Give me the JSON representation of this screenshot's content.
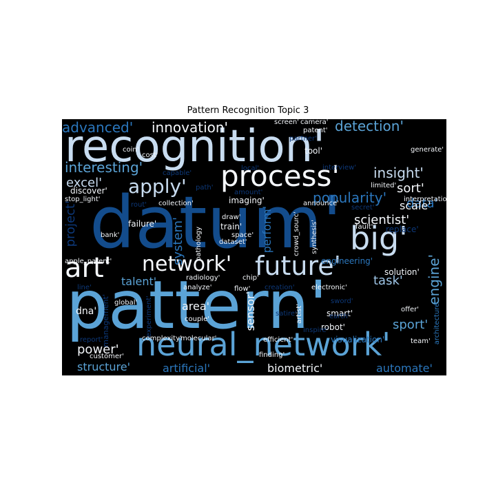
{
  "title": "Pattern Recognition Topic 3",
  "colors": {
    "white": "#f4f7fb",
    "pale": "#c8dcf0",
    "light": "#9ec5e6",
    "mid": "#5ba3d6",
    "blue": "#2b77bd",
    "deep": "#134c8c",
    "dark": "#0d3878",
    "background": "#000000"
  },
  "words": [
    {
      "text": "datum'",
      "color": "deep"
    },
    {
      "text": "pattern'",
      "color": "mid"
    },
    {
      "text": "recognition'",
      "color": "pale"
    },
    {
      "text": "neural_network'",
      "color": "mid"
    },
    {
      "text": "process'",
      "color": "white"
    },
    {
      "text": "big'",
      "color": "pale"
    },
    {
      "text": "future'",
      "color": "pale"
    },
    {
      "text": "network'",
      "color": "white"
    },
    {
      "text": "art'",
      "color": "white"
    },
    {
      "text": "apply'",
      "color": "pale"
    },
    {
      "text": "innovation'",
      "color": "white"
    },
    {
      "text": "advanced'",
      "color": "blue"
    },
    {
      "text": "detection'",
      "color": "mid"
    },
    {
      "text": "interesting'",
      "color": "mid"
    },
    {
      "text": "insight'",
      "color": "pale"
    },
    {
      "text": "excel'",
      "color": "pale"
    },
    {
      "text": "sort'",
      "color": "white"
    },
    {
      "text": "popularity'",
      "color": "blue"
    },
    {
      "text": "data'",
      "color": "blue"
    },
    {
      "text": "scientist'",
      "color": "white"
    },
    {
      "text": "scale'",
      "color": "white"
    },
    {
      "text": "project'",
      "color": "dark"
    },
    {
      "text": "system'",
      "color": "blue"
    },
    {
      "text": "perform'",
      "color": "blue"
    },
    {
      "text": "task'",
      "color": "light"
    },
    {
      "text": "engine'",
      "color": "mid"
    },
    {
      "text": "talent'",
      "color": "mid"
    },
    {
      "text": "area'",
      "color": "white"
    },
    {
      "text": "sensor'",
      "color": "white"
    },
    {
      "text": "sport'",
      "color": "mid"
    },
    {
      "text": "power'",
      "color": "white"
    },
    {
      "text": "structure'",
      "color": "mid"
    },
    {
      "text": "artificial'",
      "color": "blue"
    },
    {
      "text": "biometric'",
      "color": "white"
    },
    {
      "text": "automate'",
      "color": "blue"
    },
    {
      "text": "dna'",
      "color": "white"
    },
    {
      "text": "management'",
      "color": "dark"
    },
    {
      "text": "engineering'",
      "color": "blue"
    },
    {
      "text": "solution'",
      "color": "white"
    },
    {
      "text": "failure'",
      "color": "white"
    },
    {
      "text": "replace'",
      "color": "dark"
    },
    {
      "text": "discover'",
      "color": "white"
    },
    {
      "text": "stop_light'",
      "color": "white"
    },
    {
      "text": "imaging'",
      "color": "white"
    },
    {
      "text": "train'",
      "color": "white"
    },
    {
      "text": "dataset'",
      "color": "white"
    },
    {
      "text": "space'",
      "color": "white"
    },
    {
      "text": "draw'",
      "color": "white"
    },
    {
      "text": "collection'",
      "color": "white"
    },
    {
      "text": "rout'",
      "color": "dark"
    },
    {
      "text": "path'",
      "color": "dark"
    },
    {
      "text": "amount'",
      "color": "dark"
    },
    {
      "text": "announce'",
      "color": "white"
    },
    {
      "text": "secret'",
      "color": "dark"
    },
    {
      "text": "fault'",
      "color": "white"
    },
    {
      "text": "limited'",
      "color": "white"
    },
    {
      "text": "local'",
      "color": "dark"
    },
    {
      "text": "interview'",
      "color": "dark"
    },
    {
      "text": "capable'",
      "color": "dark"
    },
    {
      "text": "cost'",
      "color": "white"
    },
    {
      "text": "coin'",
      "color": "white"
    },
    {
      "text": "screen'",
      "color": "white"
    },
    {
      "text": "camera'",
      "color": "white"
    },
    {
      "text": "patent'",
      "color": "white"
    },
    {
      "text": "tool'",
      "color": "white"
    },
    {
      "text": "generate'",
      "color": "white"
    },
    {
      "text": "interpretation'",
      "color": "white"
    },
    {
      "text": "bank'",
      "color": "white"
    },
    {
      "text": "pathology",
      "color": "white"
    },
    {
      "text": "chip'",
      "color": "white"
    },
    {
      "text": "crowd_sourc'",
      "color": "white"
    },
    {
      "text": "synthesis'",
      "color": "white"
    },
    {
      "text": "apple_patent'",
      "color": "white"
    },
    {
      "text": "radiology'",
      "color": "white"
    },
    {
      "text": "analyze'",
      "color": "white"
    },
    {
      "text": "flow'",
      "color": "white"
    },
    {
      "text": "creation'",
      "color": "dark"
    },
    {
      "text": "electronic'",
      "color": "white"
    },
    {
      "text": "offer'",
      "color": "white"
    },
    {
      "text": "line'",
      "color": "dark"
    },
    {
      "text": "global'",
      "color": "white"
    },
    {
      "text": "experiment'",
      "color": "dark"
    },
    {
      "text": "couple'",
      "color": "white"
    },
    {
      "text": "sword'",
      "color": "dark"
    },
    {
      "text": "artist'",
      "color": "white"
    },
    {
      "text": "satire'",
      "color": "dark"
    },
    {
      "text": "smart'",
      "color": "white"
    },
    {
      "text": "robot'",
      "color": "white"
    },
    {
      "text": "report'",
      "color": "dark"
    },
    {
      "text": "complexity'",
      "color": "white"
    },
    {
      "text": "molecular'",
      "color": "white"
    },
    {
      "text": "efficient'",
      "color": "white"
    },
    {
      "text": "inspire'",
      "color": "dark"
    },
    {
      "text": "earth'",
      "color": "dark"
    },
    {
      "text": "visualization'",
      "color": "blue"
    },
    {
      "text": "team'",
      "color": "white"
    },
    {
      "text": "architecture'",
      "color": "blue"
    },
    {
      "text": "customer'",
      "color": "white"
    },
    {
      "text": "finding'",
      "color": "white"
    },
    {
      "text": "partner'",
      "color": "dark"
    }
  ]
}
